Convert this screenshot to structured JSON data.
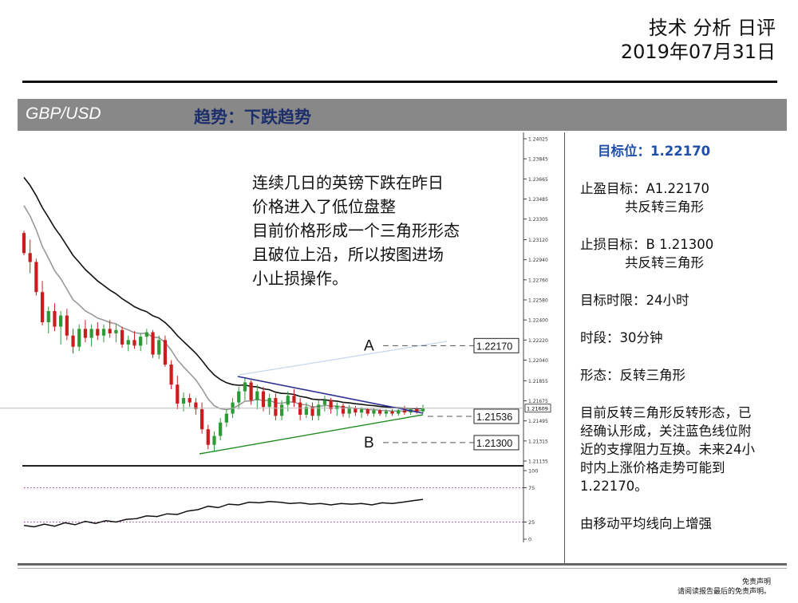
{
  "header": {
    "title": "技术 分析 日评",
    "date": "2019年07月31日"
  },
  "band": {
    "pair": "GBP/USD",
    "trend": "趋势：下跌趋势"
  },
  "note": [
    "连续几日的英镑下跌在昨日",
    "价格进入了低位盘整",
    "目前价格形成一个三角形形态",
    "且破位上沿，所以按图进场",
    "小止损操作。"
  ],
  "side": {
    "target": "目标位：1.22170",
    "tp_line1": "止盈目标：A1.22170",
    "tp_line2": "共反转三角形",
    "sl_line1": "止损目标：B  1.21300",
    "sl_line2": "共反转三角形",
    "horizon": "目标时限：24小时",
    "period": "时段：30分钟",
    "pattern": "形态：反转三角形",
    "desc": [
      "目前反转三角形反转形态，已",
      "经确认形成，关注蓝色线位附",
      "近的支撑阻力互换。未来24小",
      "时内上涨价格走势可能到",
      "1.22170。"
    ],
    "ma_note": "由移动平均线向上增强"
  },
  "disclaimer": {
    "line1": "免责声明",
    "line2": "请阅读报告最后的免责声明。"
  },
  "chart_data": {
    "type": "candlestick",
    "price_axis_ticks": [
      1.24025,
      1.23845,
      1.23665,
      1.23485,
      1.23305,
      1.2312,
      1.2294,
      1.2276,
      1.2258,
      1.224,
      1.2222,
      1.2204,
      1.21855,
      1.21675,
      1.21495,
      1.21315,
      1.21135
    ],
    "current_price": 1.21609,
    "levels": [
      {
        "label": "A",
        "value": 1.2217
      },
      {
        "value": 1.21536
      },
      {
        "label": "B",
        "value": 1.213
      }
    ],
    "candles": [
      [
        1.2318,
        1.232,
        1.2298,
        1.23
      ],
      [
        1.23,
        1.2312,
        1.2282,
        1.2292
      ],
      [
        1.2292,
        1.2295,
        1.2262,
        1.2265
      ],
      [
        1.2265,
        1.2275,
        1.2235,
        1.2238
      ],
      [
        1.2238,
        1.2252,
        1.2228,
        1.2248
      ],
      [
        1.2248,
        1.2255,
        1.223,
        1.2234
      ],
      [
        1.2234,
        1.2248,
        1.2218,
        1.2244
      ],
      [
        1.2244,
        1.225,
        1.2222,
        1.2226
      ],
      [
        1.2226,
        1.2232,
        1.221,
        1.2216
      ],
      [
        1.2216,
        1.2236,
        1.2212,
        1.2232
      ],
      [
        1.2232,
        1.224,
        1.222,
        1.2224
      ],
      [
        1.2224,
        1.2236,
        1.2216,
        1.2232
      ],
      [
        1.2232,
        1.2238,
        1.2222,
        1.2226
      ],
      [
        1.2226,
        1.2236,
        1.222,
        1.2232
      ],
      [
        1.2232,
        1.224,
        1.2224,
        1.2228
      ],
      [
        1.2228,
        1.2236,
        1.222,
        1.2231
      ],
      [
        1.2231,
        1.2234,
        1.2215,
        1.2218
      ],
      [
        1.2218,
        1.2226,
        1.2212,
        1.2222
      ],
      [
        1.2222,
        1.223,
        1.2214,
        1.2217
      ],
      [
        1.2217,
        1.2228,
        1.2212,
        1.2225
      ],
      [
        1.2225,
        1.2232,
        1.2218,
        1.2229
      ],
      [
        1.2229,
        1.2231,
        1.2206,
        1.2209
      ],
      [
        1.2209,
        1.2226,
        1.2205,
        1.2222
      ],
      [
        1.2222,
        1.2226,
        1.2198,
        1.22
      ],
      [
        1.22,
        1.2204,
        1.2178,
        1.2182
      ],
      [
        1.2182,
        1.219,
        1.216,
        1.2165
      ],
      [
        1.2165,
        1.2175,
        1.2158,
        1.217
      ],
      [
        1.217,
        1.2174,
        1.2162,
        1.2166
      ],
      [
        1.2166,
        1.217,
        1.2155,
        1.216
      ],
      [
        1.216,
        1.2166,
        1.2138,
        1.2142
      ],
      [
        1.2142,
        1.2146,
        1.2124,
        1.2128
      ],
      [
        1.2128,
        1.214,
        1.2122,
        1.2136
      ],
      [
        1.2136,
        1.2152,
        1.2132,
        1.2148
      ],
      [
        1.2148,
        1.216,
        1.2144,
        1.2156
      ],
      [
        1.2156,
        1.217,
        1.2152,
        1.2166
      ],
      [
        1.2166,
        1.218,
        1.216,
        1.2176
      ],
      [
        1.2176,
        1.2188,
        1.2168,
        1.2184
      ],
      [
        1.2184,
        1.2186,
        1.2164,
        1.2168
      ],
      [
        1.2168,
        1.2182,
        1.216,
        1.2176
      ],
      [
        1.2176,
        1.218,
        1.2158,
        1.2162
      ],
      [
        1.2162,
        1.2174,
        1.2155,
        1.217
      ],
      [
        1.217,
        1.2174,
        1.215,
        1.2154
      ],
      [
        1.2154,
        1.2168,
        1.215,
        1.2164
      ],
      [
        1.2164,
        1.2176,
        1.2158,
        1.2172
      ],
      [
        1.2172,
        1.2178,
        1.2162,
        1.2166
      ],
      [
        1.2166,
        1.217,
        1.215,
        1.2155
      ],
      [
        1.2155,
        1.2166,
        1.2152,
        1.2162
      ],
      [
        1.2162,
        1.2166,
        1.215,
        1.2154
      ],
      [
        1.2154,
        1.2168,
        1.215,
        1.2164
      ],
      [
        1.2164,
        1.2172,
        1.2158,
        1.2168
      ],
      [
        1.2168,
        1.217,
        1.2156,
        1.216
      ],
      [
        1.216,
        1.2166,
        1.2154,
        1.2163
      ],
      [
        1.2163,
        1.2165,
        1.2153,
        1.2156
      ],
      [
        1.2156,
        1.2164,
        1.2152,
        1.2161
      ],
      [
        1.2161,
        1.2163,
        1.2154,
        1.2157
      ],
      [
        1.2157,
        1.2162,
        1.2152,
        1.216
      ],
      [
        1.216,
        1.2161,
        1.2154,
        1.2156
      ],
      [
        1.2156,
        1.2161,
        1.2153,
        1.2159
      ],
      [
        1.2159,
        1.216,
        1.2154,
        1.2156
      ],
      [
        1.2156,
        1.216,
        1.2153,
        1.2158
      ],
      [
        1.2158,
        1.216,
        1.2154,
        1.2156
      ],
      [
        1.2156,
        1.216,
        1.2154,
        1.2159
      ],
      [
        1.2159,
        1.2163,
        1.2155,
        1.2157
      ],
      [
        1.2157,
        1.2161,
        1.2155,
        1.216
      ],
      [
        1.216,
        1.2162,
        1.2156,
        1.2158
      ],
      [
        1.2158,
        1.2164,
        1.2156,
        1.2161
      ]
    ],
    "oscillator_ticks": [
      100,
      75,
      25,
      0
    ],
    "oscillator": [
      20,
      18,
      22,
      19,
      24,
      21,
      26,
      23,
      27,
      25,
      29,
      30,
      34,
      33,
      37,
      36,
      41,
      43,
      48,
      46,
      51,
      50,
      54,
      53,
      55,
      54,
      52,
      53,
      51,
      52,
      50,
      52,
      51,
      52,
      50,
      53,
      52,
      54,
      56,
      58
    ]
  }
}
